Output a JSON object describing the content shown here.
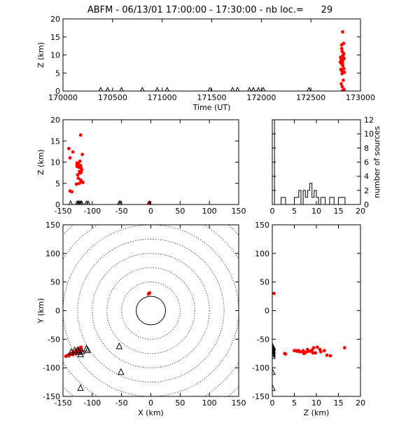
{
  "title": "ABFM - 06/13/01 17:00:00 - 17:30:00 - nb loc.=      29",
  "colors": {
    "sources": "#ff0000",
    "stations": "#000000",
    "axes": "#000000",
    "background": "#ffffff"
  },
  "chart_data": [
    {
      "id": "time_altitude",
      "type": "scatter",
      "title": "",
      "xlabel": "Time (UT)",
      "ylabel": "Z (km)",
      "xlim": [
        170000,
        173000
      ],
      "ylim": [
        0,
        20
      ],
      "xticks": [
        170000,
        170500,
        171000,
        171500,
        172000,
        172500,
        173000
      ],
      "yticks": [
        0,
        5,
        10,
        15,
        20
      ],
      "series": [
        {
          "marker": "dot",
          "color": "#ff0000",
          "x": [
            172820,
            172830,
            172810,
            172815,
            172825,
            172800,
            172835,
            172805,
            172812,
            172828,
            172818,
            172808,
            172822,
            172832,
            172802,
            172838,
            172814,
            172826,
            172806,
            172816,
            172834,
            172810,
            172824,
            172818,
            172796,
            172830,
            172812,
            172820,
            172822
          ],
          "y": [
            16.4,
            13.2,
            12.8,
            11.0,
            10.0,
            9.4,
            9.0,
            8.8,
            8.6,
            9.2,
            8.2,
            7.6,
            7.0,
            6.2,
            6.0,
            5.2,
            4.8,
            3.0,
            2.0,
            1.2,
            0.4,
            11.8,
            9.8,
            7.8,
            8.0,
            10.4,
            5.6,
            0.0,
            0.2
          ]
        },
        {
          "marker": "triangle",
          "color": "#000000",
          "x": [
            170380,
            170450,
            170590,
            170800,
            170950,
            171050,
            171480,
            171710,
            171760,
            171880,
            171920,
            171970,
            172020,
            172480
          ],
          "y": [
            0,
            0,
            0,
            0,
            0,
            0,
            0,
            0,
            0,
            0,
            0,
            0,
            0,
            0
          ]
        }
      ]
    },
    {
      "id": "x_altitude",
      "type": "scatter",
      "xlabel": "",
      "ylabel": "Z (km)",
      "xlim": [
        -150,
        150
      ],
      "ylim": [
        0,
        20
      ],
      "xticks": [
        -150,
        -100,
        -50,
        0,
        50,
        100,
        150
      ],
      "yticks": [
        0,
        5,
        10,
        15,
        20
      ],
      "series": [
        {
          "marker": "dot",
          "color": "#ff0000",
          "x": [
            -140,
            -133,
            -138,
            -126,
            -120,
            -123,
            -118,
            -122,
            -119,
            -126,
            -121,
            -117,
            -124,
            -125,
            -120,
            -118,
            -127,
            -122,
            -120,
            -124,
            -126,
            -119,
            -135,
            -138,
            -116,
            -121,
            -2,
            -3,
            -2
          ],
          "y": [
            13.2,
            12.4,
            11.0,
            9.0,
            9.2,
            8.8,
            8.2,
            7.8,
            8.6,
            9.4,
            10.2,
            11.8,
            6.2,
            7.0,
            5.8,
            5.4,
            4.8,
            5.0,
            16.4,
            9.6,
            9.8,
            7.6,
            3.0,
            3.2,
            5.2,
            7.4,
            0.0,
            0.2,
            0.4
          ]
        },
        {
          "marker": "triangle",
          "color": "#000000",
          "x": [
            -137,
            -126,
            -124,
            -122,
            -120,
            -118,
            -110,
            -107,
            -54,
            -52,
            -3
          ],
          "y": [
            0,
            0,
            0,
            0,
            0,
            0,
            0,
            0,
            0,
            0,
            0
          ]
        }
      ]
    },
    {
      "id": "altitude_histogram",
      "type": "bar",
      "xlabel": "",
      "ylabel": "number of sources",
      "xlim": [
        0,
        20
      ],
      "ylim": [
        0,
        12
      ],
      "xticks": [
        0,
        5,
        10,
        15,
        20
      ],
      "yticks": [
        0,
        2,
        4,
        6,
        8,
        10,
        12
      ],
      "bin_edges": [
        0,
        0.5,
        1,
        1.5,
        2,
        2.5,
        3,
        3.5,
        4,
        4.5,
        5,
        5.5,
        6,
        6.5,
        7,
        7.5,
        8,
        8.5,
        9,
        9.5,
        10,
        10.5,
        11,
        11.5,
        12,
        12.5,
        13,
        13.5,
        14,
        14.5,
        15,
        15.5,
        16,
        16.5,
        17,
        17.5,
        18,
        18.5,
        19,
        19.5,
        20
      ],
      "values": [
        12,
        0,
        0,
        0,
        1,
        1,
        0,
        0,
        0,
        0,
        1,
        1,
        2,
        0,
        2,
        1,
        2,
        3,
        1,
        2,
        1,
        0,
        1,
        1,
        0,
        0,
        1,
        1,
        0,
        0,
        1,
        1,
        1,
        0,
        0,
        0,
        0,
        0,
        0,
        0
      ]
    },
    {
      "id": "plan_view",
      "type": "scatter",
      "xlabel": "X (km)",
      "ylabel": "Y (km)",
      "xlim": [
        -150,
        150
      ],
      "ylim": [
        -150,
        150
      ],
      "xticks": [
        -150,
        -100,
        -50,
        0,
        50,
        100,
        150
      ],
      "yticks": [
        -150,
        -100,
        -50,
        0,
        50,
        100,
        150
      ],
      "rings": [
        25,
        50,
        75,
        100,
        125,
        150,
        175,
        200
      ],
      "series": [
        {
          "marker": "dot",
          "color": "#ff0000",
          "x": [
            -145,
            -142,
            -140,
            -138,
            -136,
            -134,
            -132,
            -130,
            -128,
            -127,
            -126,
            -125,
            -124,
            -123,
            -122,
            -121,
            -120,
            -119,
            -126,
            -124,
            -128,
            -130,
            -133,
            -136,
            -120,
            -118,
            -3,
            -2,
            -4
          ],
          "y": [
            -80,
            -78,
            -79,
            -76,
            -75,
            -74,
            -73,
            -72,
            -70,
            -71,
            -69,
            -70,
            -68,
            -67,
            -66,
            -65,
            -68,
            -64,
            -73,
            -72,
            -75,
            -74,
            -77,
            -76,
            -70,
            -71,
            30,
            31,
            29
          ]
        },
        {
          "marker": "triangle",
          "color": "#000000",
          "x": [
            -136,
            -130,
            -125,
            -123,
            -120,
            -118,
            -110,
            -108,
            -54,
            -51,
            -120
          ],
          "y": [
            -73,
            -70,
            -70,
            -73,
            -77,
            -72,
            -67,
            -70,
            -63,
            -108,
            -136
          ]
        }
      ]
    },
    {
      "id": "altitude_y",
      "type": "scatter",
      "xlabel": "Z (km)",
      "ylabel": "",
      "xlim": [
        0,
        20
      ],
      "ylim": [
        -150,
        150
      ],
      "xticks": [
        0,
        5,
        10,
        15,
        20
      ],
      "yticks": [
        -150,
        -100,
        -50,
        0,
        50,
        100,
        150
      ],
      "series": [
        {
          "marker": "dot",
          "color": "#ff0000",
          "x": [
            0.0,
            0.2,
            0.4,
            3.0,
            5.0,
            5.6,
            6.2,
            7.0,
            7.6,
            8.0,
            8.6,
            9.0,
            9.4,
            9.8,
            10.2,
            11.0,
            11.8,
            12.4,
            13.2,
            16.4,
            2.8,
            6.0,
            6.8,
            8.2,
            9.2,
            5.4,
            7.2,
            10.8,
            0.4
          ],
          "y": [
            -70,
            -72,
            -68,
            -76,
            -70,
            -71,
            -72,
            -70,
            -73,
            -68,
            -71,
            -69,
            -65,
            -74,
            -64,
            -72,
            -70,
            -78,
            -79,
            -65,
            -75,
            -70,
            -72,
            -71,
            -74,
            -70,
            -75,
            -68,
            30
          ]
        },
        {
          "marker": "triangle",
          "color": "#000000",
          "x": [
            0,
            0,
            0,
            0,
            0,
            0,
            0,
            0,
            0,
            0,
            0
          ],
          "y": [
            -63,
            -66,
            -68,
            -70,
            -72,
            -75,
            -77,
            -80,
            -108,
            -136,
            -73
          ]
        }
      ]
    }
  ]
}
